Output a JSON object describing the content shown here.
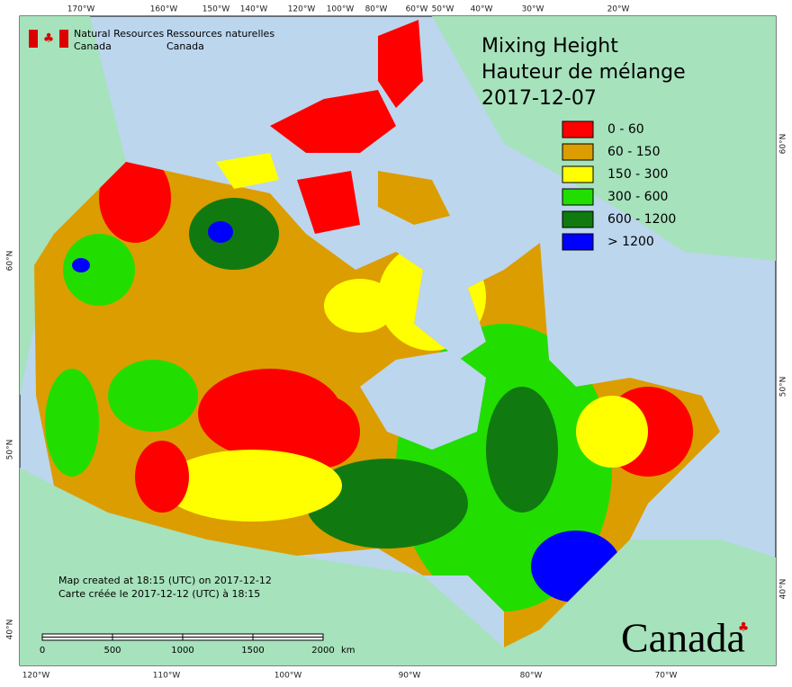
{
  "header": {
    "agency_en": [
      "Natural Resources",
      "Canada"
    ],
    "agency_fr": [
      "Ressources naturelles",
      "Canada"
    ]
  },
  "title": [
    "Mixing Height",
    "Hauteur de mélange",
    "2017-12-07"
  ],
  "legend": [
    {
      "label": "0 - 60",
      "color": "#ff0000"
    },
    {
      "label": "60 - 150",
      "color": "#dc9d00"
    },
    {
      "label": "150 - 300",
      "color": "#ffff00"
    },
    {
      "label": "300 - 600",
      "color": "#22dd00"
    },
    {
      "label": "600 - 1200",
      "color": "#107a10"
    },
    {
      "label": "> 1200",
      "color": "#0000ff"
    }
  ],
  "top_ticks": [
    "170°W",
    "160°W",
    "150°W",
    "140°W",
    "120°W",
    "100°W",
    "80°W",
    "60°W",
    "50°W",
    "40°W",
    "30°W",
    "20°W"
  ],
  "bottom_ticks": [
    "120°W",
    "110°W",
    "100°W",
    "90°W",
    "80°W",
    "70°W"
  ],
  "left_ticks": [
    "60°N",
    "50°N",
    "40°N"
  ],
  "right_ticks": [
    "60°N",
    "50°N",
    "40°N"
  ],
  "footnote": [
    "Map created at 18:15 (UTC) on 2017-12-12",
    "Carte créée le 2017-12-12 (UTC) à 18:15"
  ],
  "scale": {
    "labels": [
      "0",
      "500",
      "1000",
      "1500",
      "2000"
    ],
    "unit": "km"
  },
  "wordmark": "Canada"
}
